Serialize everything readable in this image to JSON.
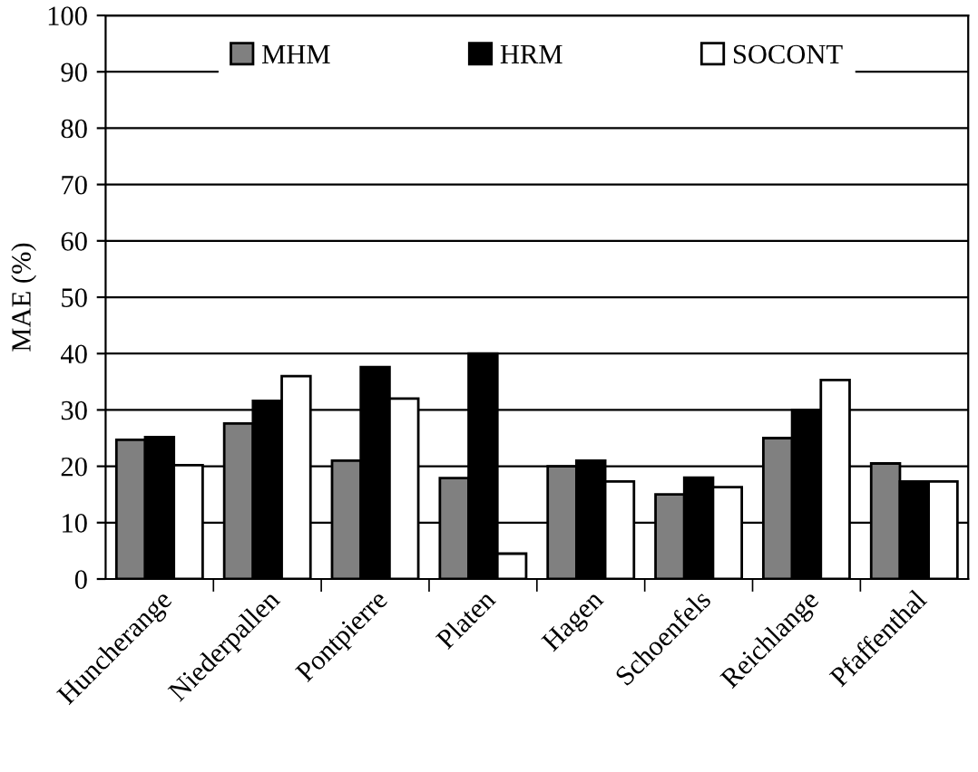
{
  "chart_data": {
    "type": "bar",
    "ylabel": "MAE (%)",
    "categories": [
      "Huncherange",
      "Niederpallen",
      "Pontpierre",
      "Platen",
      "Hagen",
      "Schoenfels",
      "Reichlange",
      "Pfaffenthal"
    ],
    "series": [
      {
        "name": "MHM",
        "color": "#808080",
        "values": [
          24.7,
          27.6,
          21,
          17.9,
          20,
          15,
          25,
          20.5
        ]
      },
      {
        "name": "HRM",
        "color": "#000000",
        "values": [
          25.2,
          31.6,
          37.6,
          40,
          21,
          18,
          30,
          17.3
        ]
      },
      {
        "name": "SOCONT",
        "color": "#ffffff",
        "values": [
          20.2,
          36,
          32,
          4.5,
          17.3,
          16.3,
          35.3,
          17.3
        ]
      }
    ],
    "ylim": [
      0,
      100
    ],
    "yticks": [
      0,
      10,
      20,
      30,
      40,
      50,
      60,
      70,
      80,
      90,
      100
    ],
    "grid": "y",
    "legend": "top"
  }
}
